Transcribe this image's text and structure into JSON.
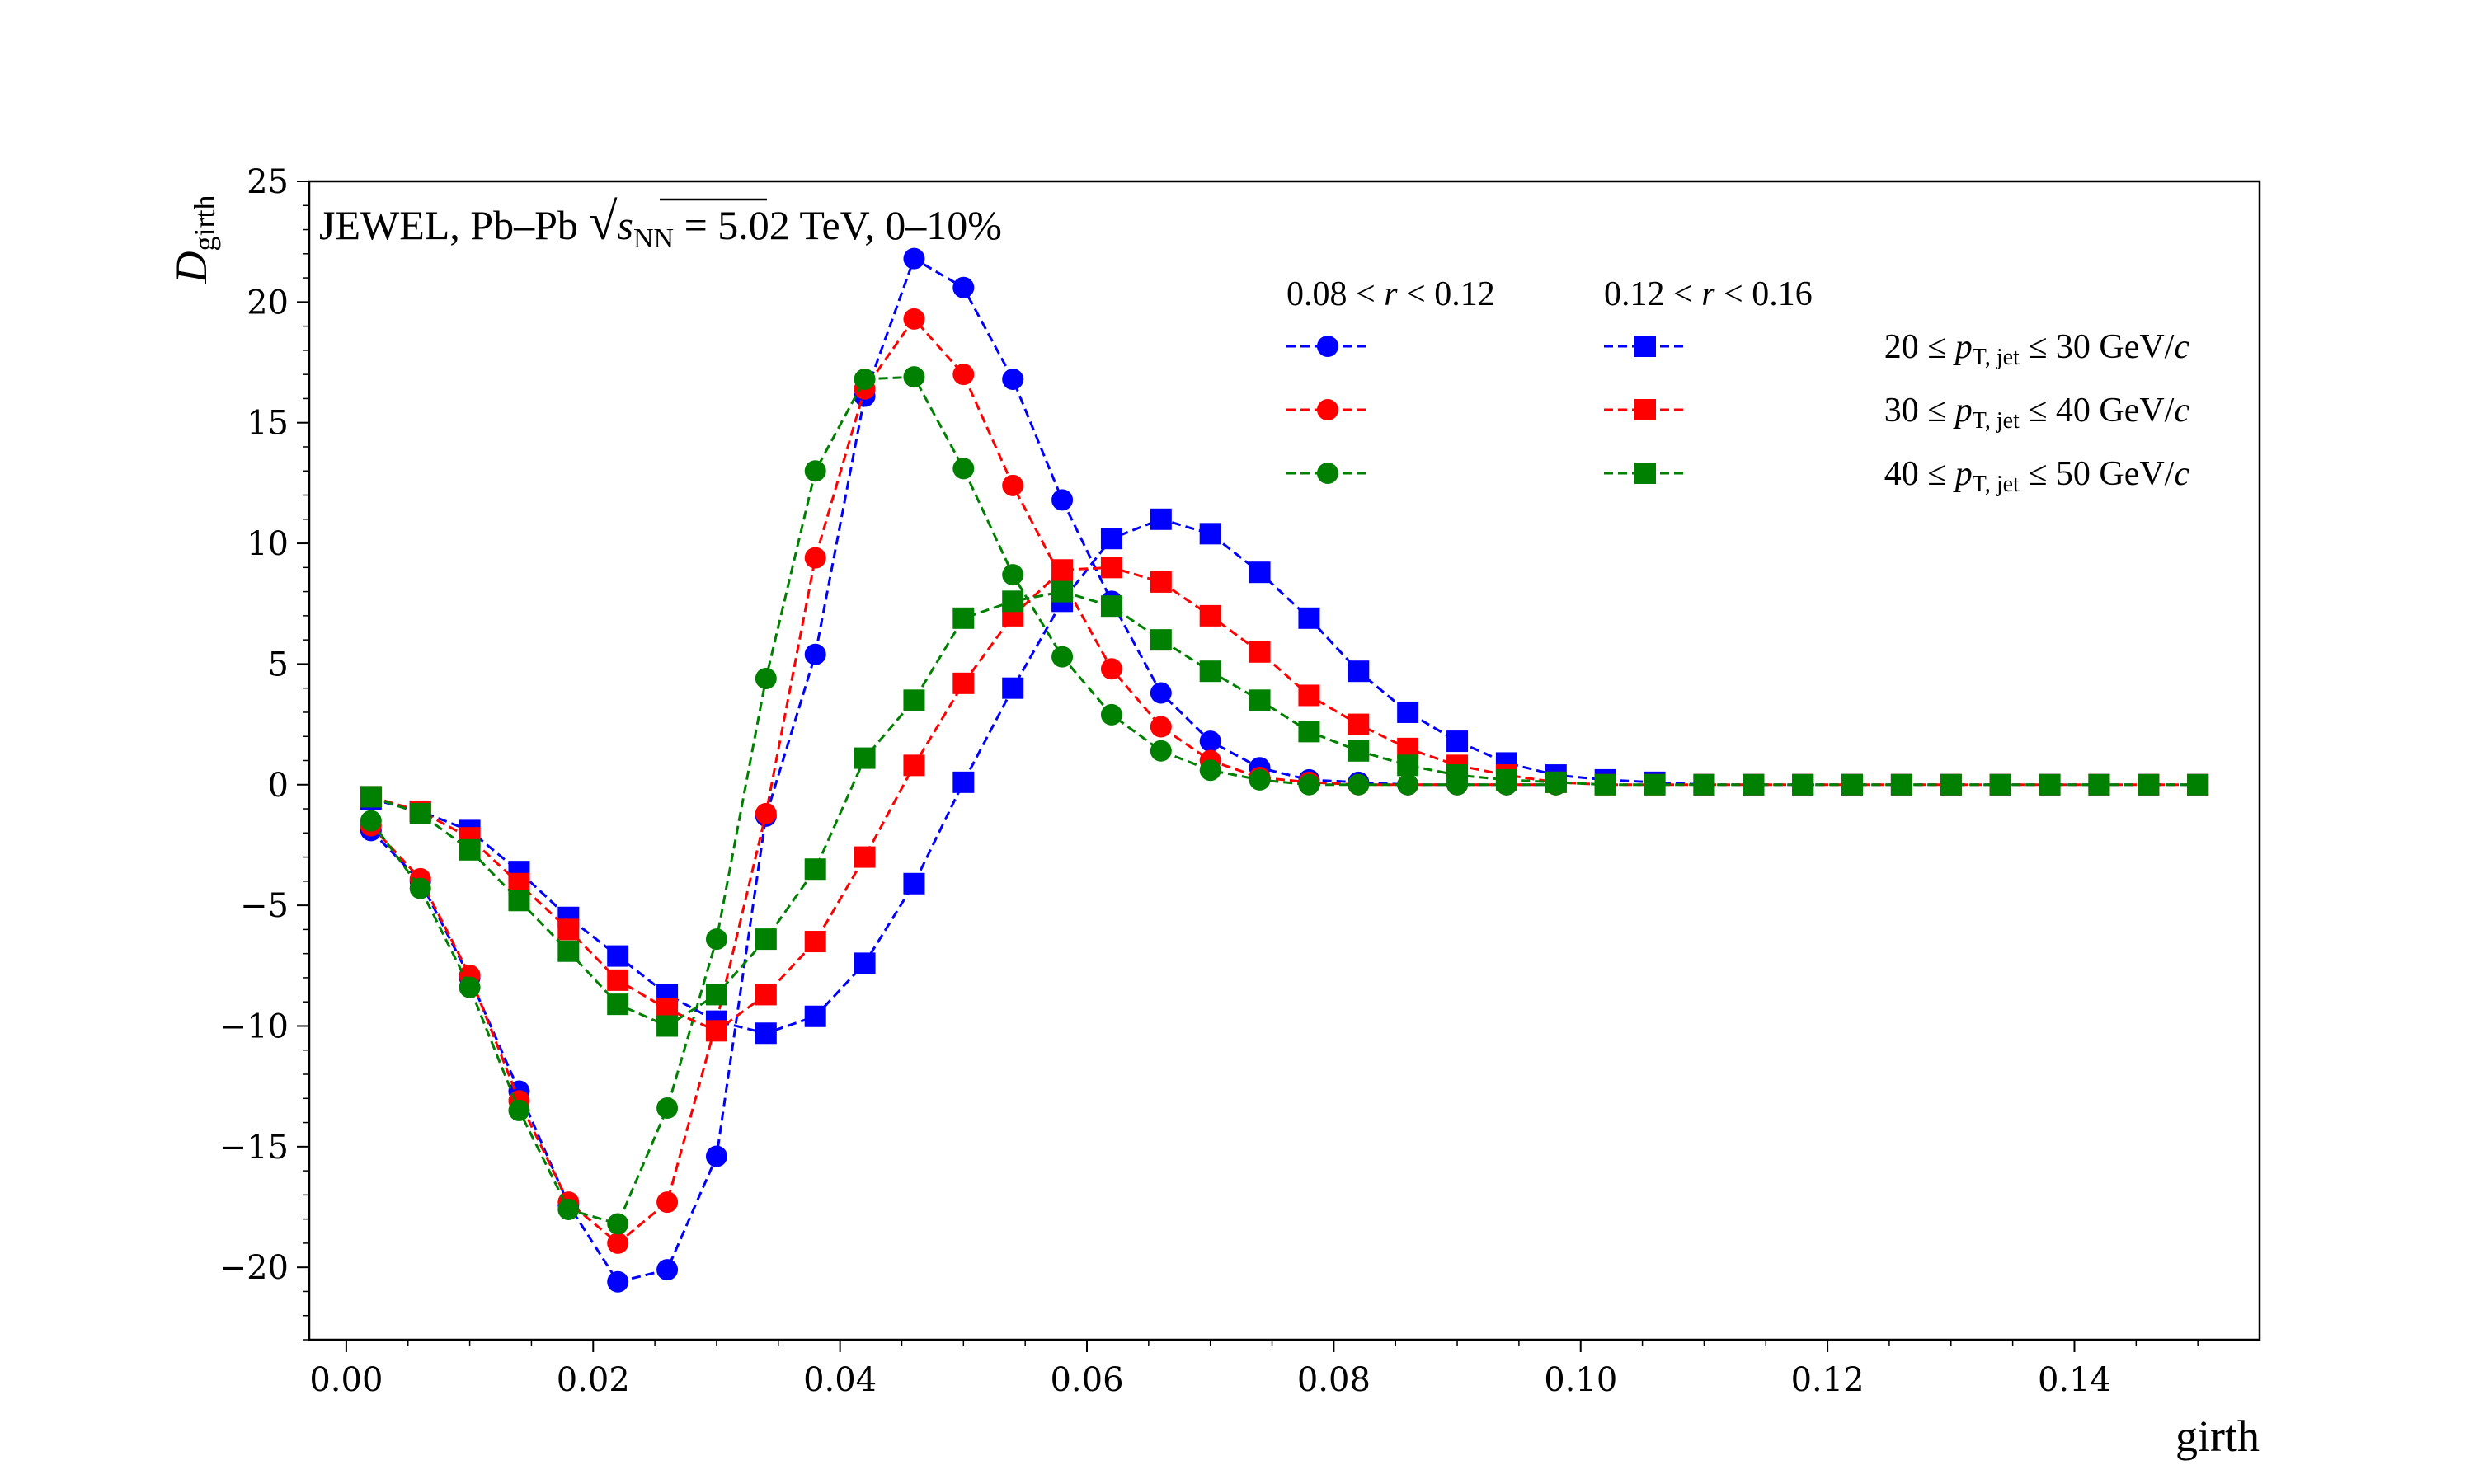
{
  "chart_data": {
    "type": "line",
    "annotation": {
      "prefix": "JEWEL, Pb–Pb ",
      "sqrt_var": "s",
      "sqrt_sub": "NN",
      "suffix": " = 5.02 TeV, 0–10%"
    },
    "xlabel": "girth",
    "ylabel": {
      "main": "D",
      "sub": "girth"
    },
    "xlim": [
      -0.003,
      0.155
    ],
    "ylim": [
      -23,
      25
    ],
    "xticks": [
      0.0,
      0.02,
      0.04,
      0.06,
      0.08,
      0.1,
      0.12,
      0.14
    ],
    "xtick_labels": [
      "0.00",
      "0.02",
      "0.04",
      "0.06",
      "0.08",
      "0.10",
      "0.12",
      "0.14"
    ],
    "yticks": [
      -20,
      -15,
      -10,
      -5,
      0,
      5,
      10,
      15,
      20,
      25
    ],
    "ytick_labels": [
      "−20",
      "−15",
      "−10",
      "−5",
      "0",
      "5",
      "10",
      "15",
      "20",
      "25"
    ],
    "legend": {
      "placement": "top-right",
      "column_headers": [
        {
          "low": "0.08",
          "high": "0.12",
          "var": "r"
        },
        {
          "low": "0.12",
          "high": "0.16",
          "var": "r"
        }
      ],
      "row_labels": [
        {
          "low": "20",
          "high": "30",
          "unit": "GeV/",
          "unit_var": "c"
        },
        {
          "low": "30",
          "high": "40",
          "unit": "GeV/",
          "unit_var": "c"
        },
        {
          "low": "40",
          "high": "50",
          "unit": "GeV/",
          "unit_var": "c"
        }
      ],
      "pt_var": "p",
      "pt_sub": "T, jet"
    },
    "x": [
      0.002,
      0.006,
      0.01,
      0.014,
      0.018,
      0.022,
      0.026,
      0.03,
      0.034,
      0.038,
      0.042,
      0.046,
      0.05,
      0.054,
      0.058,
      0.062,
      0.066,
      0.07,
      0.074,
      0.078,
      0.082,
      0.086,
      0.09,
      0.094,
      0.098,
      0.102,
      0.106,
      0.11,
      0.114,
      0.118,
      0.122,
      0.126,
      0.13,
      0.134,
      0.138,
      0.142,
      0.146,
      0.15
    ],
    "series": [
      {
        "marker": "circle",
        "color": "#0000ff",
        "values": [
          -1.9,
          -4.0,
          -8.0,
          -12.7,
          -17.4,
          -20.6,
          -20.1,
          -15.4,
          -1.3,
          5.4,
          16.1,
          21.8,
          20.6,
          16.8,
          11.8,
          7.6,
          3.8,
          1.8,
          0.7,
          0.2,
          0.1,
          0.0,
          0.0,
          0.0,
          0.0,
          null,
          null,
          null,
          null,
          null,
          null,
          null,
          null,
          null,
          null,
          null,
          null,
          null
        ]
      },
      {
        "marker": "circle",
        "color": "#ff0000",
        "values": [
          -1.7,
          -3.9,
          -7.9,
          -13.1,
          -17.3,
          -19.0,
          -17.3,
          -9.8,
          -1.2,
          9.4,
          16.4,
          19.3,
          17.0,
          12.4,
          8.5,
          4.8,
          2.4,
          1.0,
          0.3,
          0.1,
          0.0,
          0.0,
          0.0,
          0.0,
          0.0,
          null,
          null,
          null,
          null,
          null,
          null,
          null,
          null,
          null,
          null,
          null,
          null,
          null
        ]
      },
      {
        "marker": "circle",
        "color": "#008000",
        "values": [
          -1.5,
          -4.3,
          -8.4,
          -13.5,
          -17.6,
          -18.2,
          -13.4,
          -6.4,
          4.4,
          13.0,
          16.8,
          16.9,
          13.1,
          8.7,
          5.3,
          2.9,
          1.4,
          0.6,
          0.2,
          0.0,
          0.0,
          0.0,
          0.0,
          0.0,
          0.0,
          null,
          null,
          null,
          null,
          null,
          null,
          null,
          null,
          null,
          null,
          null,
          null,
          null
        ]
      },
      {
        "marker": "square",
        "color": "#0000ff",
        "values": [
          -0.6,
          -1.1,
          -1.9,
          -3.6,
          -5.5,
          -7.1,
          -8.7,
          -9.8,
          -10.3,
          -9.6,
          -7.4,
          -4.1,
          0.1,
          4.0,
          7.6,
          10.2,
          11.0,
          10.4,
          8.8,
          6.9,
          4.7,
          3.0,
          1.8,
          0.9,
          0.4,
          0.2,
          0.1,
          0.0,
          0.0,
          0.0,
          0.0,
          0.0,
          0.0,
          0.0,
          0.0,
          0.0,
          0.0,
          0.0
        ]
      },
      {
        "marker": "square",
        "color": "#ff0000",
        "values": [
          -0.5,
          -1.1,
          -2.2,
          -4.1,
          -6.0,
          -8.1,
          -9.3,
          -10.2,
          -8.7,
          -6.5,
          -3.0,
          0.8,
          4.2,
          7.0,
          8.9,
          9.0,
          8.4,
          7.0,
          5.5,
          3.7,
          2.5,
          1.5,
          0.8,
          0.4,
          0.1,
          0.0,
          0.0,
          0.0,
          0.0,
          0.0,
          0.0,
          0.0,
          0.0,
          0.0,
          0.0,
          0.0,
          0.0,
          0.0
        ]
      },
      {
        "marker": "square",
        "color": "#008000",
        "values": [
          -0.5,
          -1.2,
          -2.7,
          -4.8,
          -6.9,
          -9.1,
          -10.0,
          -8.7,
          -6.4,
          -3.5,
          1.1,
          3.5,
          6.9,
          7.6,
          8.0,
          7.4,
          6.0,
          4.7,
          3.5,
          2.2,
          1.4,
          0.8,
          0.4,
          0.2,
          0.1,
          0.0,
          0.0,
          0.0,
          0.0,
          0.0,
          0.0,
          0.0,
          0.0,
          0.0,
          0.0,
          0.0,
          0.0,
          0.0
        ]
      }
    ],
    "grid": false
  }
}
